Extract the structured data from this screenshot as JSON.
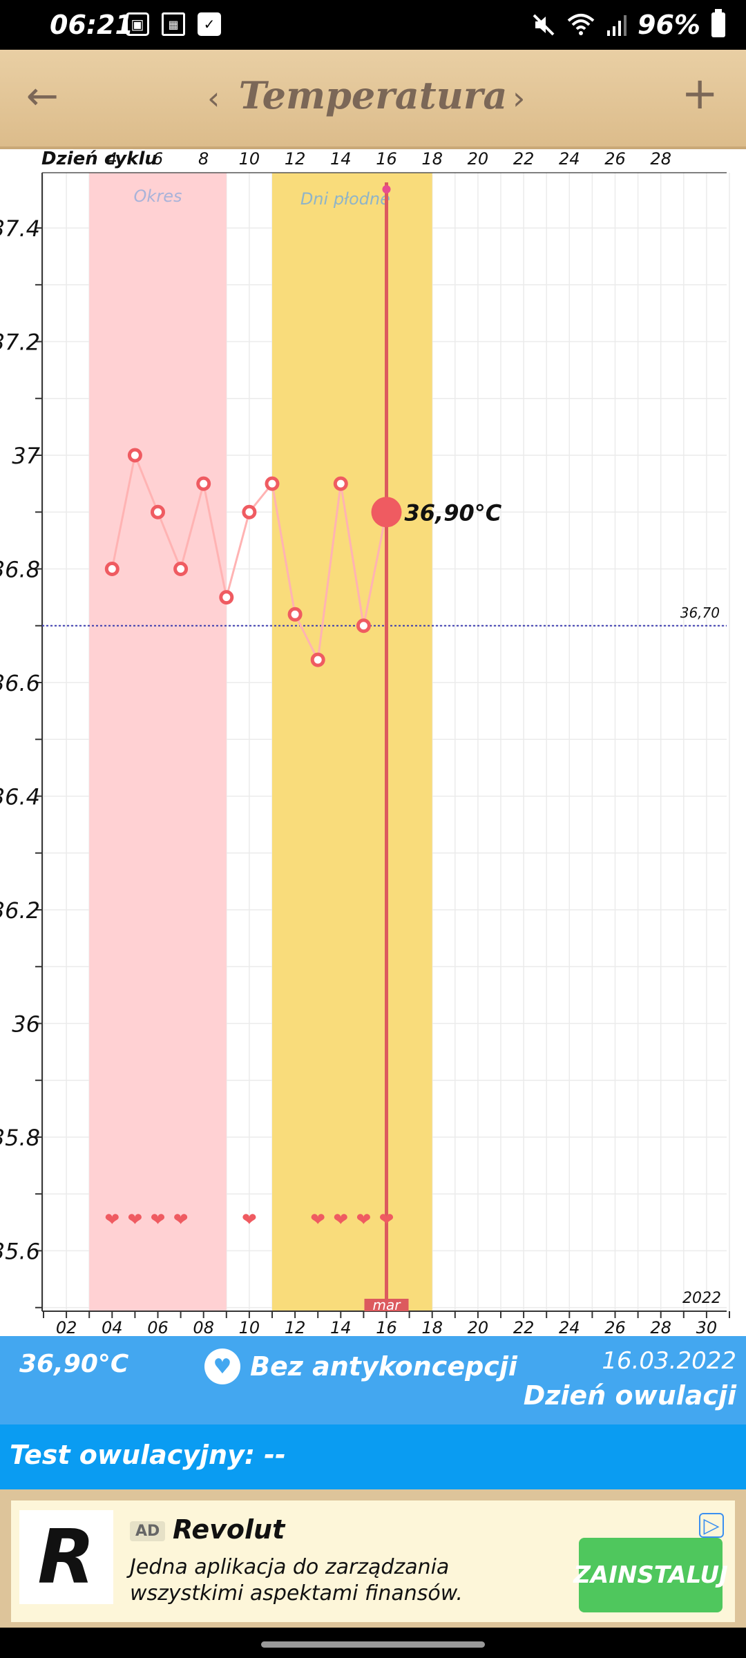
{
  "status": {
    "time": "06:21",
    "battery": "96%",
    "icons": [
      "image-icon",
      "calendar-icon",
      "checkbox-icon",
      "mute-icon",
      "wifi-icon",
      "signal-icon",
      "battery-icon"
    ]
  },
  "appbar": {
    "title": "Temperatura",
    "back_icon": "←",
    "prev_icon": "‹",
    "next_icon": "›",
    "add_icon": "+"
  },
  "chart_data": {
    "type": "line",
    "title": "",
    "top_axis_label": "Dzień cyklu",
    "top_ticks": [
      "4",
      "6",
      "8",
      "10",
      "12",
      "14",
      "16",
      "18",
      "20",
      "22",
      "24",
      "26",
      "28"
    ],
    "bottom_ticks": [
      "02",
      "04",
      "06",
      "08",
      "10",
      "12",
      "14",
      "16",
      "18",
      "20",
      "22",
      "24",
      "26",
      "28",
      "30"
    ],
    "y_ticks": [
      "37.4",
      "37.2",
      "37",
      "36.8",
      "36.6",
      "36.4",
      "36.2",
      "36",
      "35.8",
      "35.6"
    ],
    "ylim": [
      35.5,
      37.5
    ],
    "xlim": [
      1,
      31
    ],
    "series": [
      {
        "x": [
          4,
          5,
          6,
          7,
          8,
          9,
          10,
          11,
          12,
          13,
          14,
          15,
          16
        ],
        "values": [
          36.8,
          37.0,
          36.9,
          36.8,
          36.95,
          36.75,
          36.9,
          36.95,
          36.72,
          36.64,
          36.95,
          36.7,
          36.9
        ]
      }
    ],
    "baseline_value": 36.7,
    "baseline_label": "36,70",
    "selected_x": 16,
    "selected_label": "36,90°C",
    "period_band": {
      "label": "Okres",
      "from": 3,
      "to": 9
    },
    "fertile_band": {
      "label": "Dni płodne",
      "from": 11,
      "to": 18
    },
    "heart_days": [
      4,
      5,
      6,
      7,
      10,
      13,
      14,
      15,
      16
    ],
    "month_label": "mar",
    "year_label": "2022",
    "colors": {
      "period": "#ffd1d3",
      "fertile": "#f9dc7b",
      "line": "#ffb3b3",
      "point": "#ef5b61",
      "selected_line": "#dc5a5e",
      "heart": "#ef5b61",
      "baseline": "#3b3bb0",
      "grid": "#ebebeb"
    }
  },
  "info": {
    "temperature": "36,90°C",
    "contraception": "Bez antykoncepcji",
    "date": "16.03.2022",
    "status": "Dzień owulacji"
  },
  "test": {
    "text": "Test owulacyjny: --"
  },
  "ad": {
    "badge": "AD",
    "logo_letter": "R",
    "title": "Revolut",
    "description": "Jedna aplikacja do zarządzania wszystkimi aspektami finansów.",
    "install_label": "ZAINSTALUJ",
    "choices_icon": "▷"
  }
}
